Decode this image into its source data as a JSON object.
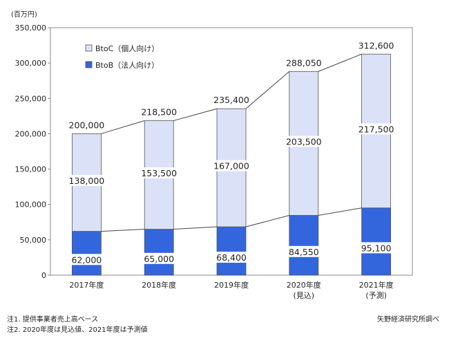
{
  "chart_data": {
    "type": "bar",
    "stacked": true,
    "unit_label": "(百万円)",
    "categories": [
      "2017年度",
      "2018年度",
      "2019年度",
      "2020年度",
      "2021年度"
    ],
    "category_sublabels": [
      "",
      "",
      "",
      "(見込)",
      "(予測)"
    ],
    "series": [
      {
        "name": "BtoB（法人向け）",
        "values": [
          62000,
          65000,
          68400,
          84550,
          95100
        ],
        "color": "#3366dd"
      },
      {
        "name": "BtoC（個人向け）",
        "values": [
          138000,
          153500,
          167000,
          203500,
          217500
        ],
        "color": "#dbe2f7"
      }
    ],
    "totals": [
      200000,
      218500,
      235400,
      288050,
      312600
    ],
    "value_labels": {
      "btob": [
        "62,000",
        "65,000",
        "68,400",
        "84,550",
        "95,100"
      ],
      "btoc": [
        "138,000",
        "153,500",
        "167,000",
        "203,500",
        "217,500"
      ],
      "totals": [
        "200,000",
        "218,500",
        "235,400",
        "288,050",
        "312,600"
      ]
    },
    "ylim": [
      0,
      350000
    ],
    "yticks": [
      0,
      50000,
      100000,
      150000,
      200000,
      250000,
      300000,
      350000
    ],
    "ytick_labels": [
      "0",
      "50,000",
      "100,000",
      "150,000",
      "200,000",
      "250,000",
      "300,000",
      "350,000"
    ],
    "legend_position": "top-left",
    "grid": false
  },
  "notes": {
    "note1": "注1.  提供事業者売上高ベース",
    "note2": "注2.  2020年度は見込値、2021年度は予測値",
    "source": "矢野経済研究所調べ"
  }
}
